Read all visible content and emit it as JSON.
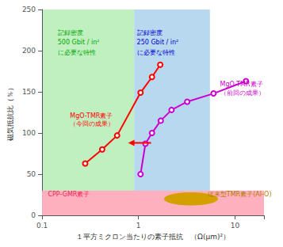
{
  "chart_data": {
    "type": "line",
    "xlabel": "１平方ミクロン当たりの素子抵抗　（Ω(μm)²）",
    "ylabel": "磁気抵抗比（％）",
    "log": "x",
    "xlim": [
      0.1,
      20
    ],
    "ylim": [
      0,
      250
    ],
    "xticks": [
      0.1,
      1,
      10
    ],
    "yticks": [
      0,
      50,
      100,
      150,
      200,
      250
    ],
    "grid": false,
    "series": [
      {
        "x": [
          0.28,
          0.42,
          0.6,
          1.05,
          1.38,
          1.68
        ],
        "values": [
          63,
          80,
          97,
          149,
          168,
          183
        ],
        "color": "#ff0000",
        "marker": "circle"
      },
      {
        "x": [
          1.05,
          1.18,
          1.38,
          1.7,
          2.2,
          3.2,
          6.0,
          13.0
        ],
        "values": [
          50,
          87,
          100,
          115,
          128,
          138,
          148,
          163
        ],
        "color": "#cc00cc",
        "marker": "circle"
      }
    ],
    "regions": [
      {
        "x": [
          0.1,
          0.9
        ],
        "color": "#c0efc0"
      },
      {
        "x": [
          0.9,
          5.5
        ],
        "color": "#b8d8f0"
      },
      {
        "y": [
          0,
          30
        ],
        "color": "#ffb0be"
      }
    ],
    "ellipse": {
      "x": 3.5,
      "y": 20,
      "height": 16,
      "color": "#d4a000"
    },
    "arrow": {
      "from": [
        1.35,
        88
      ],
      "to": [
        0.78,
        88
      ],
      "color": "red"
    },
    "annotations": [
      {
        "text": "記録密度",
        "x": 0.145,
        "y": 218,
        "color": "#00aa00"
      },
      {
        "text": "500 Gbit / in²",
        "x": 0.145,
        "y": 206,
        "color": "#00aa00"
      },
      {
        "text": "に必要な特性",
        "x": 0.145,
        "y": 194,
        "color": "#00aa00"
      },
      {
        "text": "記録密度",
        "x": 0.96,
        "y": 218,
        "color": "#0000cc"
      },
      {
        "text": "250 Gbit / in²",
        "x": 0.96,
        "y": 206,
        "color": "#0000cc"
      },
      {
        "text": "に必要な特性",
        "x": 0.96,
        "y": 194,
        "color": "#0000cc"
      },
      {
        "text": "MgO-TMR素子",
        "x": 0.195,
        "y": 117,
        "color": "#ff0000"
      },
      {
        "text": "（今回の成果）",
        "x": 0.195,
        "y": 107,
        "color": "#ff0000"
      },
      {
        "text": "MgO-TMR素子",
        "x": 7.0,
        "y": 155,
        "color": "#cc00cc"
      },
      {
        "text": "（前回の成果）",
        "x": 7.0,
        "y": 145,
        "color": "#cc00cc"
      },
      {
        "text": "CPP-GMR素子",
        "x": 0.115,
        "y": 22,
        "color": "#ee2255"
      },
      {
        "text": "従来型TMR素子(Al-O)",
        "x": 5.2,
        "y": 22,
        "color": "#b87800"
      }
    ]
  }
}
